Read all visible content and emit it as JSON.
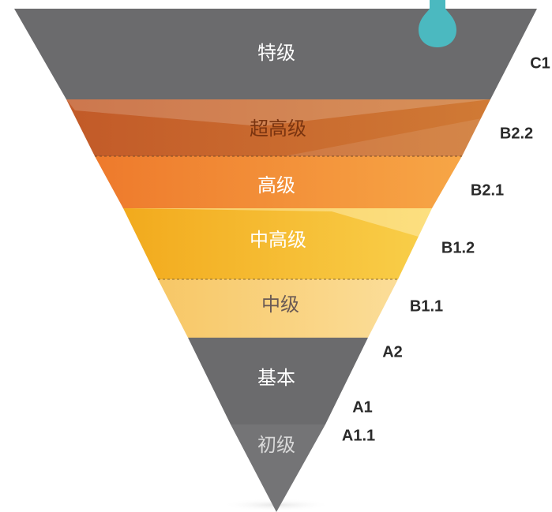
{
  "levels": [
    {
      "label": "特级",
      "color": "#6b6b6d",
      "text_color": "#ffffff"
    },
    {
      "label": "超高级",
      "color": "#c4692f",
      "text_color": "#7a3410"
    },
    {
      "label": "高级",
      "color": "#f2893a",
      "text_color": "#ffffff"
    },
    {
      "label": "中高级",
      "color": "#f5b82a",
      "text_color": "#ffffff"
    },
    {
      "label": "中级",
      "color": "#f9d27e",
      "text_color": "#6a5a55"
    },
    {
      "label": "基本",
      "color": "#6b6b6d",
      "text_color": "#ffffff"
    },
    {
      "label": "初级",
      "color": "#6b6b6d",
      "text_color": "#d9d9d9"
    }
  ],
  "codes": [
    {
      "code": "C1"
    },
    {
      "code": "B2.2"
    },
    {
      "code": "B2.1"
    },
    {
      "code": "B1.2"
    },
    {
      "code": "B1.1"
    },
    {
      "code": "A2"
    },
    {
      "code": "A1"
    },
    {
      "code": "A1.1"
    }
  ],
  "colors": {
    "teal_drop": "#4bb9c0",
    "divider": "#8a5a30"
  }
}
